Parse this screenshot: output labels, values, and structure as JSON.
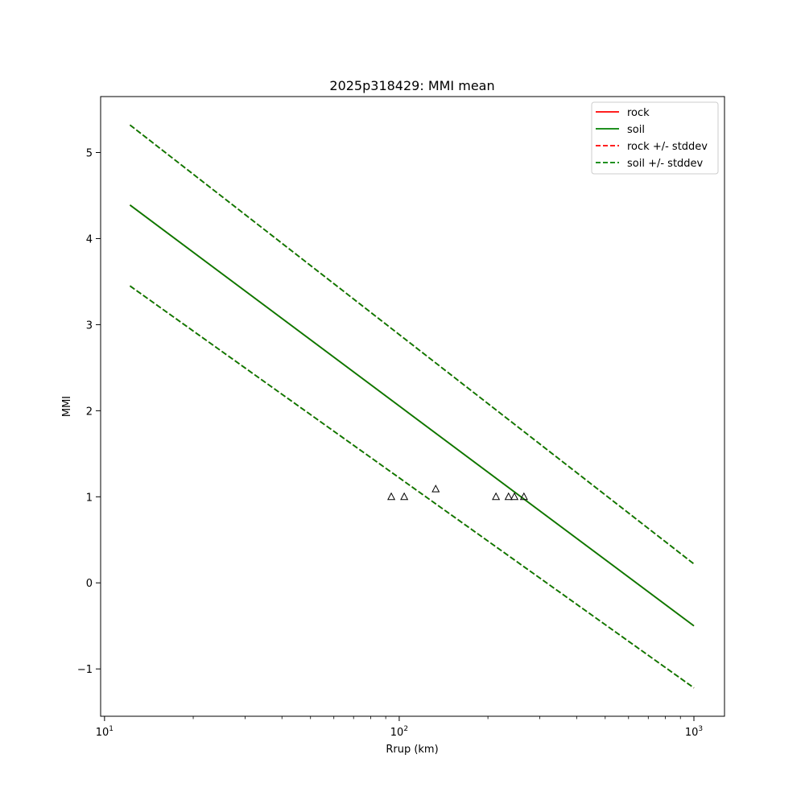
{
  "chart_data": {
    "type": "line",
    "title": "2025p318429: MMI mean",
    "xlabel": "Rrup (km)",
    "ylabel": "MMI",
    "xscale": "log",
    "xlim": [
      9.7,
      1270
    ],
    "ylim": [
      -1.55,
      5.65
    ],
    "x_ticks": [
      {
        "value": 10,
        "base": "10",
        "exp": "1"
      },
      {
        "value": 100,
        "base": "10",
        "exp": "2"
      },
      {
        "value": 1000,
        "base": "10",
        "exp": "3"
      }
    ],
    "y_ticks": [
      {
        "value": -1,
        "label": "−1"
      },
      {
        "value": 0,
        "label": "0"
      },
      {
        "value": 1,
        "label": "1"
      },
      {
        "value": 2,
        "label": "2"
      },
      {
        "value": 3,
        "label": "3"
      },
      {
        "value": 4,
        "label": "4"
      },
      {
        "value": 5,
        "label": "5"
      }
    ],
    "grid": false,
    "legend_position": "top-right",
    "series": [
      {
        "name": "rock",
        "color": "#ff0000",
        "dash": "solid",
        "x": [
          12.2,
          1000
        ],
        "y": [
          4.39,
          -0.5
        ]
      },
      {
        "name": "soil",
        "color": "#008000",
        "dash": "solid",
        "x": [
          12.2,
          1000
        ],
        "y": [
          4.39,
          -0.5
        ]
      },
      {
        "name": "rock +/- stddev",
        "color": "#ff0000",
        "dash": "dashed",
        "x": [
          12.2,
          1000
        ],
        "y": [
          5.32,
          0.22
        ],
        "lower_y": [
          3.45,
          -1.22
        ]
      },
      {
        "name": "soil +/- stddev",
        "color": "#008000",
        "dash": "dashed",
        "x": [
          12.2,
          1000
        ],
        "y": [
          5.32,
          0.22
        ],
        "lower_y": [
          3.45,
          -1.22
        ]
      }
    ],
    "observations": {
      "marker": "triangle",
      "color": "#000000",
      "x": [
        94,
        104,
        133,
        213,
        235,
        246,
        265
      ],
      "y": [
        1.0,
        1.0,
        1.09,
        1.0,
        1.0,
        1.0,
        1.0
      ]
    }
  }
}
